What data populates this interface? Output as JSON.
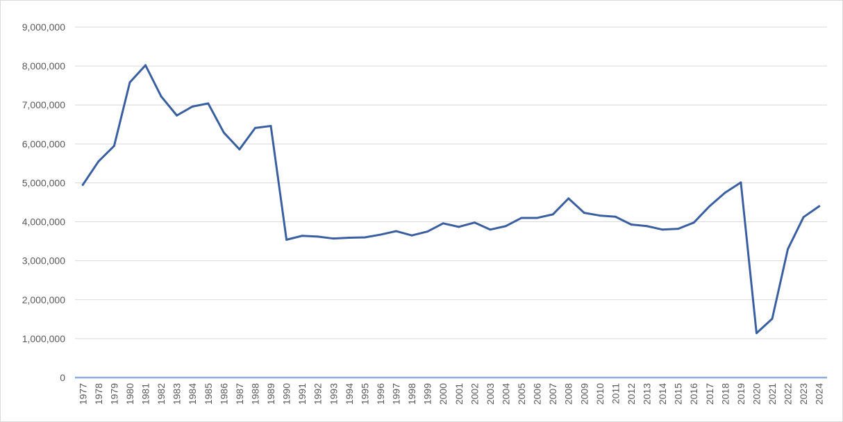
{
  "chart_data": {
    "type": "line",
    "title": "",
    "xlabel": "",
    "ylabel": "",
    "x": [
      "1977",
      "1978",
      "1979",
      "1980",
      "1981",
      "1982",
      "1983",
      "1984",
      "1985",
      "1986",
      "1987",
      "1988",
      "1989",
      "1990",
      "1991",
      "1992",
      "1993",
      "1994",
      "1995",
      "1996",
      "1997",
      "1998",
      "1999",
      "2000",
      "2001",
      "2002",
      "2003",
      "2004",
      "2005",
      "2006",
      "2007",
      "2008",
      "2009",
      "2010",
      "2011",
      "2012",
      "2013",
      "2014",
      "2015",
      "2016",
      "2017",
      "2018",
      "2019",
      "2020",
      "2021",
      "2022",
      "2023",
      "2024"
    ],
    "series": [
      {
        "color": "#3a5fa0",
        "values": [
          4950000,
          5550000,
          5950000,
          7580000,
          8020000,
          7220000,
          6730000,
          6960000,
          7040000,
          6290000,
          5860000,
          6410000,
          6460000,
          3540000,
          3640000,
          3620000,
          3570000,
          3590000,
          3600000,
          3670000,
          3760000,
          3650000,
          3750000,
          3960000,
          3870000,
          3980000,
          3800000,
          3890000,
          4100000,
          4100000,
          4190000,
          4600000,
          4230000,
          4160000,
          4130000,
          3930000,
          3890000,
          3800000,
          3820000,
          3980000,
          4400000,
          4750000,
          5010000,
          1140000,
          1510000,
          3300000,
          4120000,
          4400000
        ]
      }
    ],
    "ylim": [
      0,
      9000000
    ],
    "y_ticks": [
      0,
      1000000,
      2000000,
      3000000,
      4000000,
      5000000,
      6000000,
      7000000,
      8000000,
      9000000
    ],
    "y_tick_labels": [
      "0",
      "1,000,000",
      "2,000,000",
      "3,000,000",
      "4,000,000",
      "5,000,000",
      "6,000,000",
      "7,000,000",
      "8,000,000",
      "9,000,000"
    ],
    "grid": true,
    "legend": "none",
    "axis_color": "#8eaadb",
    "grid_color": "#d9d9d9",
    "label_color": "#595959"
  }
}
